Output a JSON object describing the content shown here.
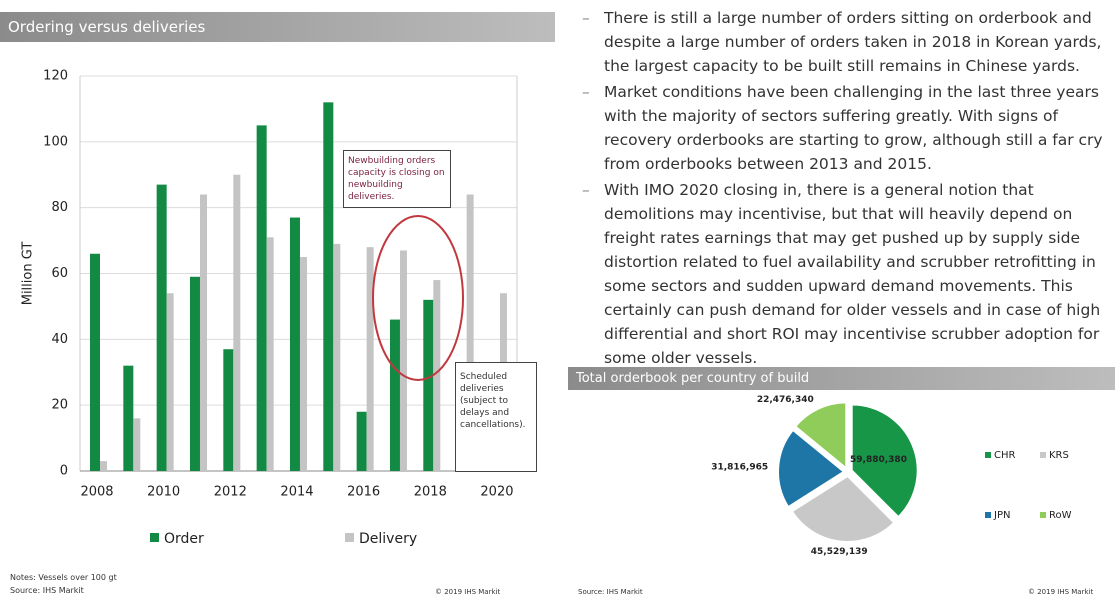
{
  "chart_data": [
    {
      "type": "bar",
      "title": "Ordering versus deliveries",
      "ylabel": "Million GT",
      "categories": [
        "2008",
        null,
        "2010",
        null,
        "2012",
        null,
        "2014",
        null,
        "2016",
        null,
        "2018",
        null,
        "2020"
      ],
      "series": [
        {
          "name": "Order",
          "color": "#138a43",
          "values": [
            66,
            32,
            87,
            59,
            37,
            105,
            77,
            112,
            18,
            46,
            52,
            null,
            null
          ]
        },
        {
          "name": "Delivery",
          "color": "#c4c4c4",
          "values": [
            3,
            16,
            54,
            84,
            90,
            71,
            65,
            69,
            68,
            67,
            58,
            84,
            54
          ]
        }
      ],
      "ylim": [
        0,
        120
      ],
      "yticks": [
        0,
        20,
        40,
        60,
        80,
        100,
        120
      ],
      "grid": true,
      "annotations": [
        "Newbuilding orders capacity is closing on newbuilding deliveries.",
        "Scheduled deliveries (subject to delays and cancellations)."
      ]
    },
    {
      "type": "pie",
      "title": "Total orderbook per country of build",
      "categories": [
        "CHR",
        "KRS",
        "JPN",
        "RoW"
      ],
      "values": [
        59880380,
        45529139,
        31816965,
        22476340
      ],
      "value_labels": [
        "59,880,380",
        "45,529,139",
        "31,816,965",
        "22,476,340"
      ],
      "colors": [
        "#179648",
        "#c8c8c8",
        "#1e76a6",
        "#8fcc5a"
      ]
    }
  ],
  "bullets": [
    "There is still a large number of orders sitting on orderbook and despite a large number of orders taken in 2018 in Korean yards, the largest capacity to be built still remains in Chinese yards.",
    "Market conditions have been challenging in the last three years with the majority of sectors suffering greatly. With signs of recovery orderbooks are starting to grow, although still a far cry from orderbooks between 2013 and 2015.",
    "With IMO 2020 closing in, there is a general notion that demolitions may incentivise, but that will heavily depend on freight rates earnings that may get pushed up by supply side distortion related to fuel availability and scrubber retrofitting in some sectors and sudden upward demand movements. This certainly can push demand for older vessels and in case of high differential and short ROI may incentivise scrubber adoption for some older vessels."
  ],
  "notes": "Notes: Vessels over 100 gt",
  "source_left": "Source: IHS Markit",
  "copyright_left": "© 2019 IHS Markit",
  "source_right": "Source: IHS Markit",
  "copyright_right": "© 2019 IHS Markit"
}
